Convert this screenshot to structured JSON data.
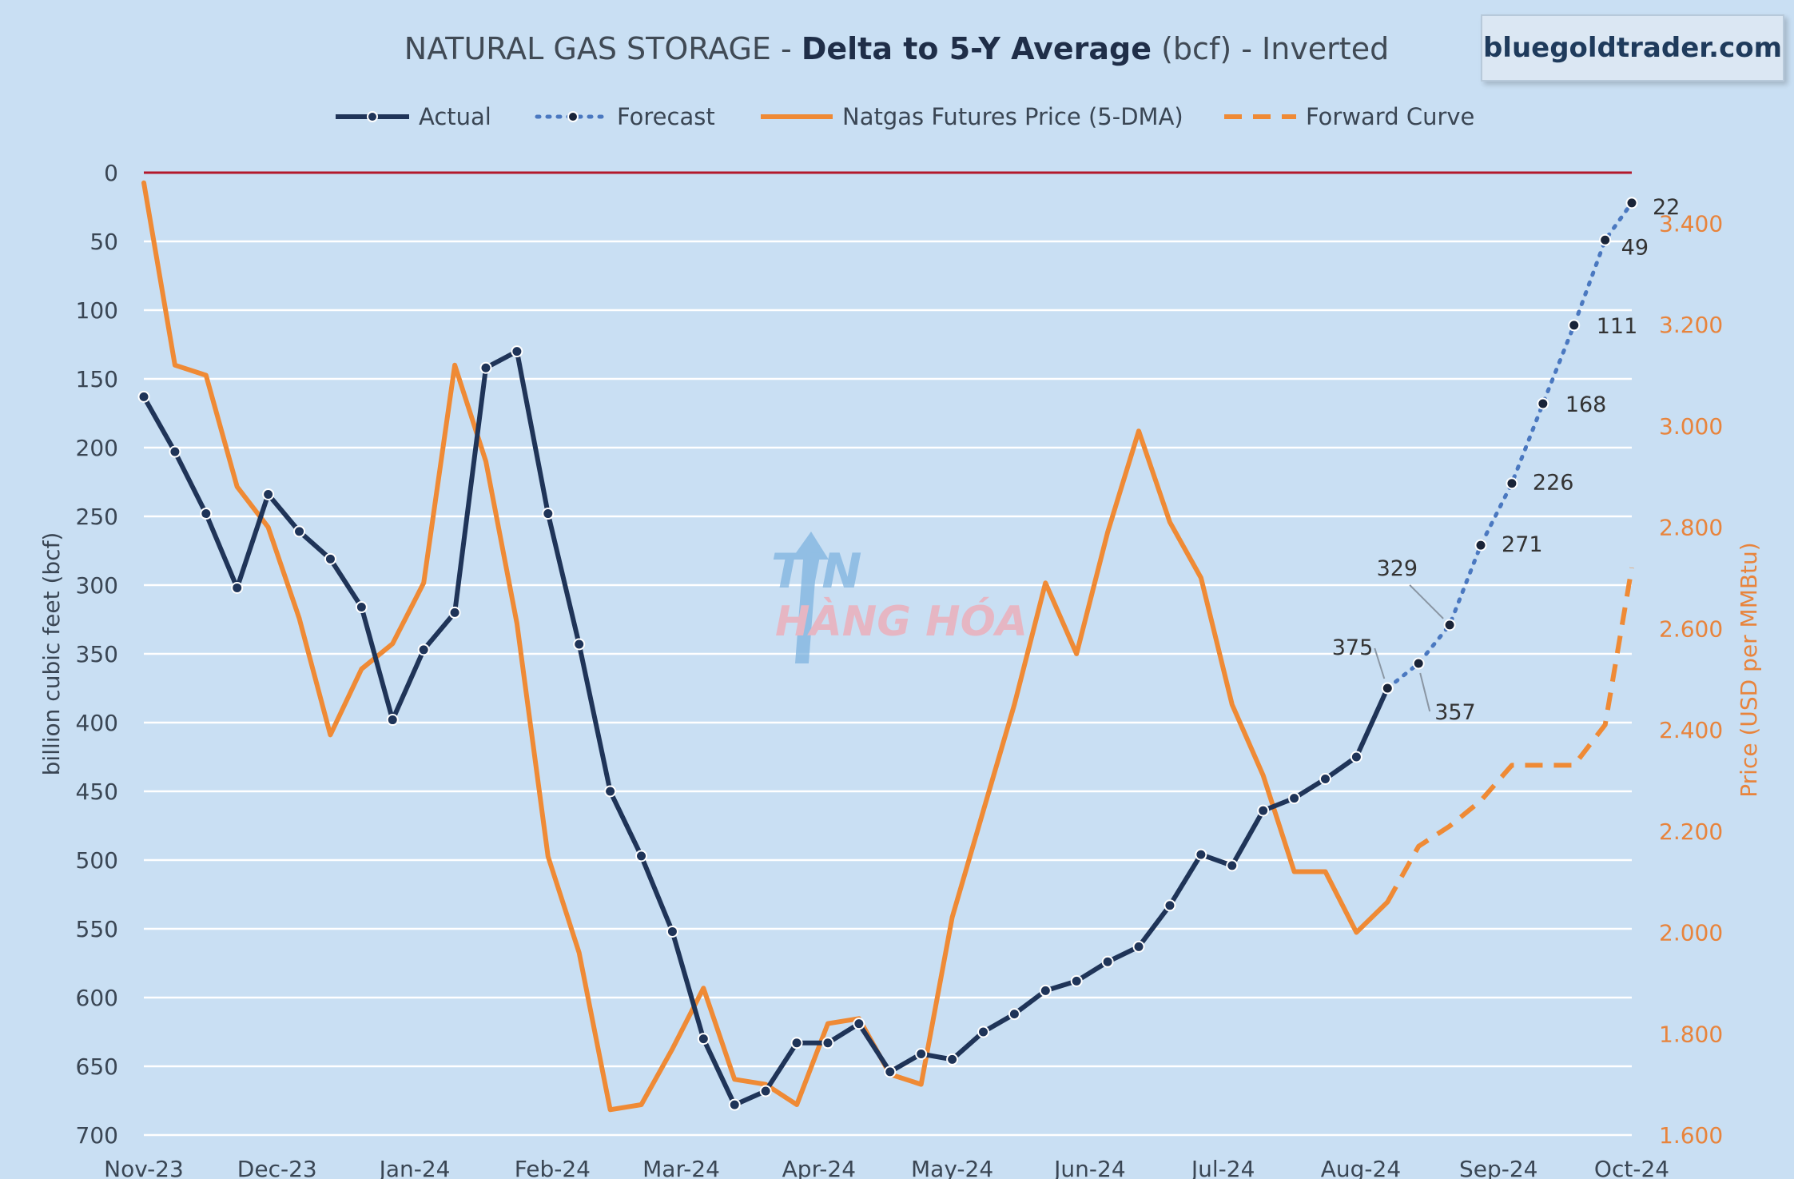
{
  "chart_data": {
    "type": "line",
    "title": {
      "prefix": "NATURAL GAS STORAGE - ",
      "bold": "Delta to 5-Y Average",
      "suffix": " (bcf) - Inverted"
    },
    "brand": "bluegoldtrader.com",
    "ylabel_left": "billion cubic feet (bcf)",
    "ylabel_right": "Price (USD per MMBtu)",
    "y_left": {
      "min": 0,
      "max": 700,
      "inverted": true,
      "ticks": [
        0,
        50,
        100,
        150,
        200,
        250,
        300,
        350,
        400,
        450,
        500,
        550,
        600,
        650,
        700
      ]
    },
    "y_right": {
      "min": 1.6,
      "max": 3.5,
      "ticks": [
        "1.600",
        "1.800",
        "2.000",
        "2.200",
        "2.400",
        "2.600",
        "2.800",
        "3.000",
        "3.200",
        "3.400"
      ]
    },
    "x_range_days": [
      0,
      335
    ],
    "x_ticks": [
      {
        "label": "Nov-23",
        "day": 0
      },
      {
        "label": "Dec-23",
        "day": 30
      },
      {
        "label": "Jan-24",
        "day": 61
      },
      {
        "label": "Feb-24",
        "day": 92
      },
      {
        "label": "Mar-24",
        "day": 121
      },
      {
        "label": "Apr-24",
        "day": 152
      },
      {
        "label": "May-24",
        "day": 182
      },
      {
        "label": "Jun-24",
        "day": 213
      },
      {
        "label": "Jul-24",
        "day": 243
      },
      {
        "label": "Aug-24",
        "day": 274
      },
      {
        "label": "Sep-24",
        "day": 305
      },
      {
        "label": "Oct-24",
        "day": 335
      }
    ],
    "legend": [
      {
        "label": "Actual",
        "style": "actual"
      },
      {
        "label": "Forecast",
        "style": "forecast"
      },
      {
        "label": "Natgas Futures Price (5-DMA)",
        "style": "price"
      },
      {
        "label": "Forward Curve",
        "style": "forward"
      }
    ],
    "colors": {
      "actual": "#1f3458",
      "forecast": "#4a78c0",
      "price": "#ef8a35",
      "zero_line": "#b3182b",
      "grid": "#ffffff",
      "right_axis_text": "#e8843c",
      "annotation": "#333333"
    },
    "series": [
      {
        "name": "Actual",
        "days": [
          0,
          7,
          14,
          21,
          28,
          35,
          42,
          49,
          56,
          63,
          70,
          77,
          84,
          91,
          98,
          105,
          112,
          119,
          126,
          133,
          140,
          147,
          154,
          161,
          168,
          175,
          182,
          189,
          196,
          203,
          210,
          217,
          224,
          231,
          238,
          245,
          252,
          259,
          266,
          273,
          280
        ],
        "values": [
          163,
          203,
          248,
          302,
          234,
          261,
          281,
          316,
          398,
          347,
          320,
          142,
          130,
          248,
          343,
          450,
          497,
          552,
          630,
          678,
          668,
          633,
          633,
          619,
          654,
          641,
          645,
          625,
          612,
          595,
          588,
          574,
          563,
          533,
          496,
          504,
          464,
          455,
          441,
          425,
          375
        ]
      },
      {
        "name": "Forecast",
        "days": [
          280,
          287,
          294,
          301,
          308,
          315,
          322,
          329,
          335
        ],
        "values": [
          375,
          357,
          329,
          271,
          226,
          168,
          111,
          49,
          22
        ],
        "labels": [
          "375",
          "357",
          "329",
          "271",
          "226",
          "168",
          "111",
          "49",
          "22"
        ]
      },
      {
        "name": "Natgas Futures Price (5-DMA)",
        "days": [
          0,
          7,
          14,
          21,
          28,
          35,
          42,
          49,
          56,
          63,
          70,
          77,
          84,
          91,
          98,
          105,
          112,
          119,
          126,
          133,
          140,
          147,
          154,
          161,
          168,
          175,
          182,
          189,
          196,
          203,
          210,
          217,
          224,
          231,
          238,
          245,
          252,
          259,
          266,
          273,
          280
        ],
        "values": [
          3.48,
          3.12,
          3.1,
          2.88,
          2.8,
          2.62,
          2.39,
          2.52,
          2.57,
          2.69,
          3.12,
          2.93,
          2.61,
          2.15,
          1.96,
          1.65,
          1.66,
          1.77,
          1.89,
          1.71,
          1.7,
          1.66,
          1.82,
          1.83,
          1.72,
          1.7,
          2.03,
          2.24,
          2.45,
          2.69,
          2.55,
          2.79,
          2.99,
          2.81,
          2.7,
          2.45,
          2.31,
          2.12,
          2.12,
          2.0,
          2.06
        ]
      },
      {
        "name": "Forward Curve",
        "days": [
          280,
          287,
          294,
          301,
          308,
          315,
          322,
          329,
          335
        ],
        "values": [
          2.06,
          2.17,
          2.21,
          2.26,
          2.33,
          2.33,
          2.33,
          2.41,
          2.72
        ]
      }
    ]
  },
  "watermark": {
    "line1": "TIN",
    "line2": "HÀNG HÓA"
  }
}
